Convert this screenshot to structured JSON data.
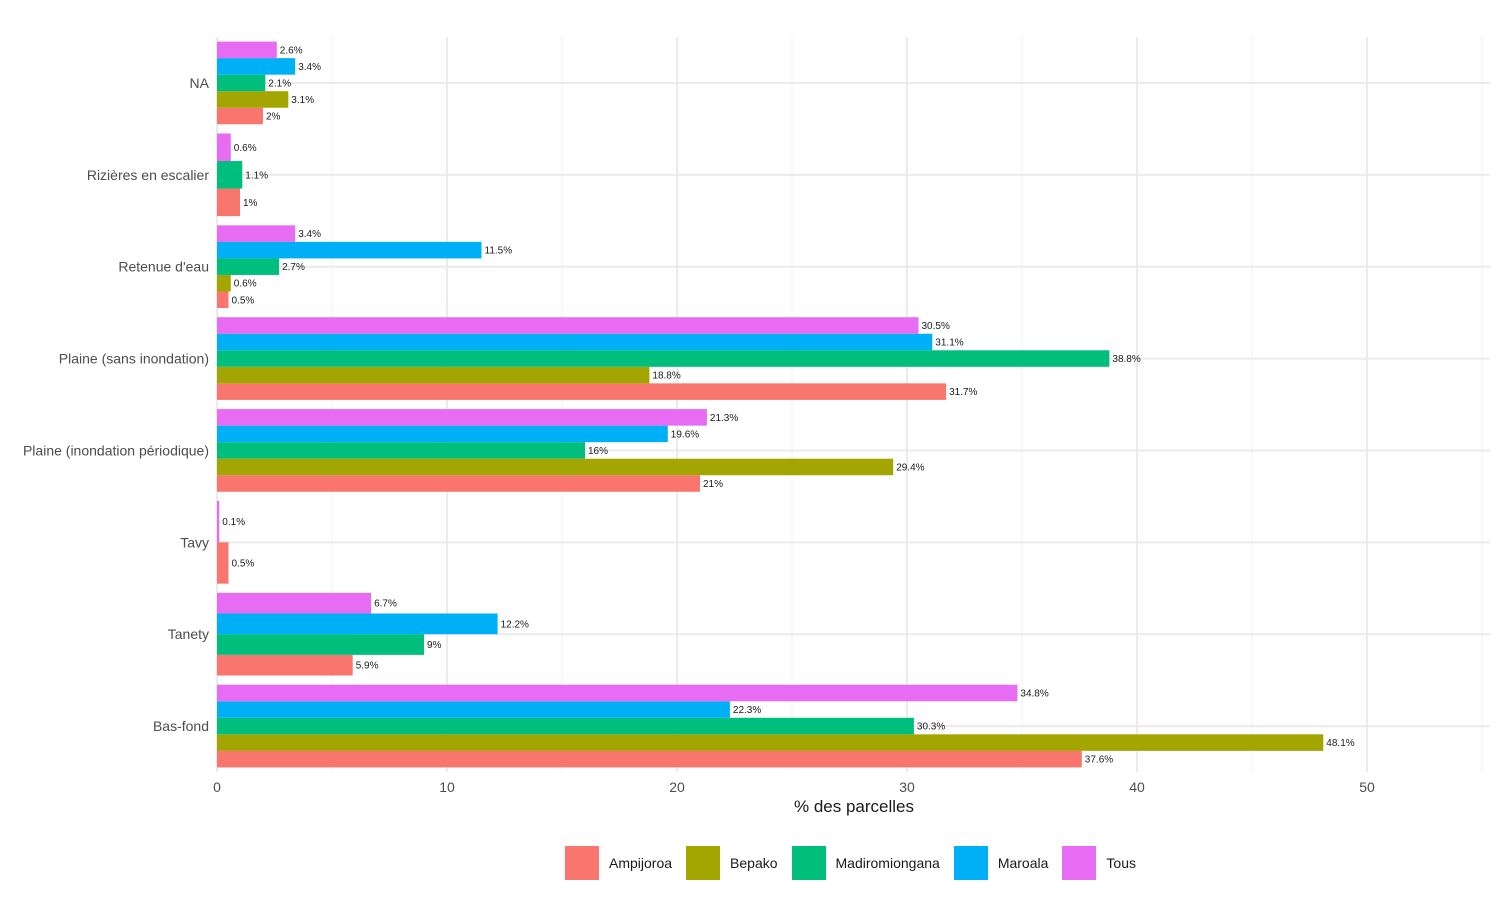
{
  "chart_data": {
    "type": "bar",
    "orientation": "horizontal",
    "title": "",
    "xlabel": "% des parcelles",
    "ylabel": "",
    "xlim": [
      0,
      55
    ],
    "xticks": [
      0,
      10,
      20,
      30,
      40,
      50
    ],
    "grid": true,
    "legend_position": "bottom",
    "categories": [
      "Bas-fond",
      "Tanety",
      "Tavy",
      "Plaine (inondation périodique)",
      "Plaine (sans inondation)",
      "Retenue d'eau",
      "Rizières en escalier",
      "NA"
    ],
    "series": [
      {
        "name": "Ampijoroa",
        "color": "#F8766D",
        "values": [
          37.6,
          5.9,
          0.5,
          21,
          31.7,
          0.5,
          1,
          2
        ],
        "labels": [
          "37.6%",
          "5.9%",
          "0.5%",
          "21%",
          "31.7%",
          "0.5%",
          "1%",
          "2%"
        ]
      },
      {
        "name": "Bepako",
        "color": "#A3A500",
        "values": [
          48.1,
          null,
          null,
          29.4,
          18.8,
          0.6,
          null,
          3.1
        ],
        "labels": [
          "48.1%",
          null,
          null,
          "29.4%",
          "18.8%",
          "0.6%",
          null,
          "3.1%"
        ]
      },
      {
        "name": "Madiromiongana",
        "color": "#00BF7D",
        "values": [
          30.3,
          9,
          null,
          16,
          38.8,
          2.7,
          1.1,
          2.1
        ],
        "labels": [
          "30.3%",
          "9%",
          null,
          "16%",
          "38.8%",
          "2.7%",
          "1.1%",
          "2.1%"
        ]
      },
      {
        "name": "Maroala",
        "color": "#00B0F6",
        "values": [
          22.3,
          12.2,
          null,
          19.6,
          31.1,
          11.5,
          null,
          3.4
        ],
        "labels": [
          "22.3%",
          "12.2%",
          null,
          "19.6%",
          "31.1%",
          "11.5%",
          null,
          "3.4%"
        ]
      },
      {
        "name": "Tous",
        "color": "#E76BF3",
        "values": [
          34.8,
          6.7,
          0.1,
          21.3,
          30.5,
          3.4,
          0.6,
          2.6
        ],
        "labels": [
          "34.8%",
          "6.7%",
          "0.1%",
          "21.3%",
          "30.5%",
          "3.4%",
          "0.6%",
          "2.6%"
        ]
      }
    ]
  }
}
